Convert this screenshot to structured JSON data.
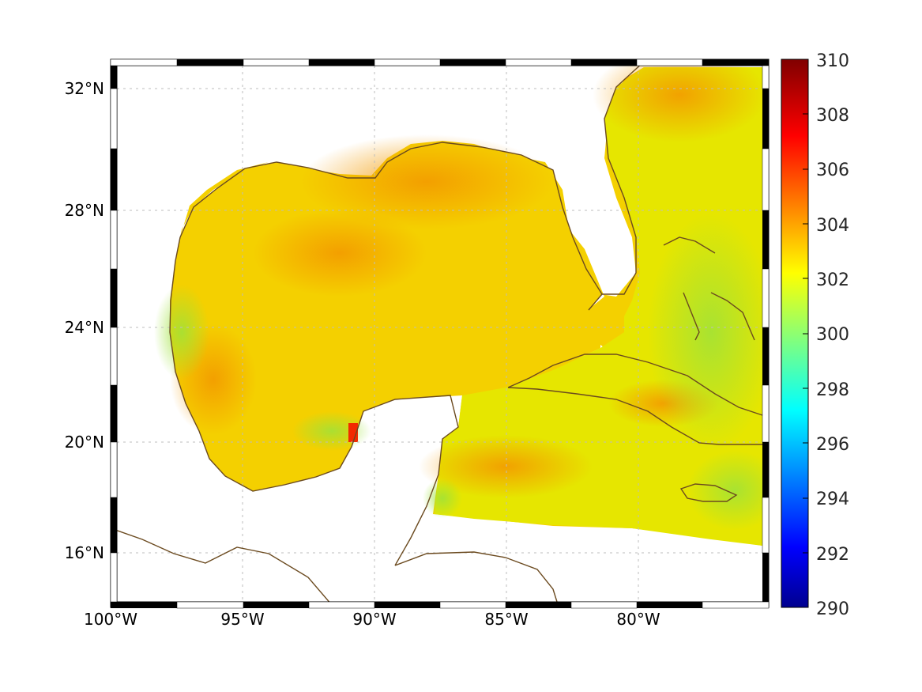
{
  "map": {
    "lon_labels": [
      "100°W",
      "95°W",
      "90°W",
      "85°W",
      "80°W"
    ],
    "lat_labels": [
      "32°N",
      "28°N",
      "24°N",
      "20°N",
      "16°N"
    ],
    "colors": {
      "coastline": "#6b4a1f",
      "gridline": "#bdbdbd",
      "frame_dark": "#000000",
      "frame_light": "#ffffff",
      "field_base": "#f4d000",
      "field_warm": "#f3a800",
      "field_cool": "#b4e000"
    }
  },
  "colorbar": {
    "ticks": [
      "310",
      "308",
      "306",
      "304",
      "302",
      "300",
      "298",
      "296",
      "294",
      "292",
      "290"
    ],
    "colormap": "jet",
    "range": [
      290,
      310
    ]
  }
}
